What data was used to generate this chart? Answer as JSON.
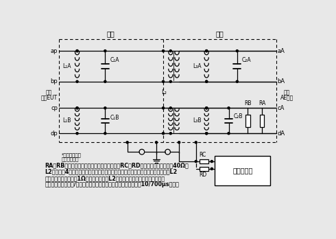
{
  "section_coupling": "耦合",
  "section_decoupling": "去耦",
  "left_label1": "被试",
  "left_label2": "设备EUT",
  "right_label1": "辅助",
  "right_label2": "AE设备",
  "note1": "*图中插头的符",
  "note2": "号代表连接点",
  "desc1": "RA和RB的值要尽量低，用于抑制振荡点振铃；RC和RD作为隔离电阻，阻值为40Ω；",
  "desc2": "L2是一个有4线圈的电流补偿扼流圈，用以避免在电器功率输送的过程中发生饱和，L2",
  "desc3": "有低的电阻值（远小于1Ω），若将电阻与L2并行连接时，可以降低总电阻值。",
  "desc4": "高速通信线路的耦合/去耦网络（由于电感饱和的原因，不推荐用于10/700μs试验）",
  "bg_color": "#e8e8e8",
  "line_color": "#000000"
}
